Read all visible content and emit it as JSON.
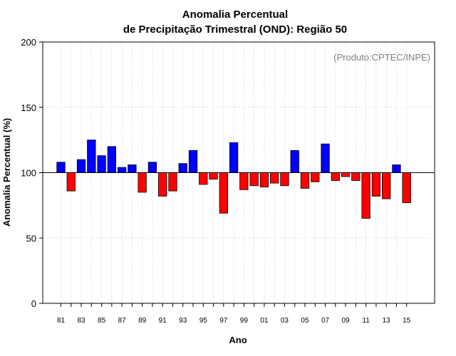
{
  "chart_data": {
    "type": "bar",
    "title_line1": "Anomalia Percentual",
    "title_line2": "de Precipitação Trimestral (OND): Região 50",
    "xlabel": "Ano",
    "ylabel": "Anomalia Percentual (%)",
    "annotation": "(Produto:CPTEC/INPE)",
    "ylim": [
      0,
      200
    ],
    "yticks": [
      0,
      50,
      100,
      150,
      200
    ],
    "baseline": 100,
    "grid": true,
    "x": [
      1981,
      1982,
      1983,
      1984,
      1985,
      1986,
      1987,
      1988,
      1989,
      1990,
      1991,
      1992,
      1993,
      1994,
      1995,
      1996,
      1997,
      1998,
      1999,
      2000,
      2001,
      2002,
      2003,
      2004,
      2005,
      2006,
      2007,
      2008,
      2009,
      2010,
      2011,
      2012,
      2013,
      2014,
      2015
    ],
    "xtick_labels": [
      "81",
      "83",
      "85",
      "87",
      "89",
      "91",
      "93",
      "95",
      "97",
      "99",
      "01",
      "03",
      "05",
      "07",
      "09",
      "11",
      "13",
      "15"
    ],
    "xtick_years": [
      1981,
      1983,
      1985,
      1987,
      1989,
      1991,
      1993,
      1995,
      1997,
      1999,
      2001,
      2003,
      2005,
      2007,
      2009,
      2011,
      2013,
      2015
    ],
    "values": [
      108,
      86,
      110,
      125,
      113,
      120,
      104,
      106,
      85,
      108,
      82,
      86,
      107,
      117,
      91,
      95,
      69,
      123,
      87,
      90,
      89,
      92,
      90,
      117,
      88,
      93,
      122,
      94,
      97,
      94,
      65,
      82,
      80,
      106,
      77
    ],
    "colors": {
      "above": "#0000ff",
      "below": "#ff0000"
    }
  }
}
